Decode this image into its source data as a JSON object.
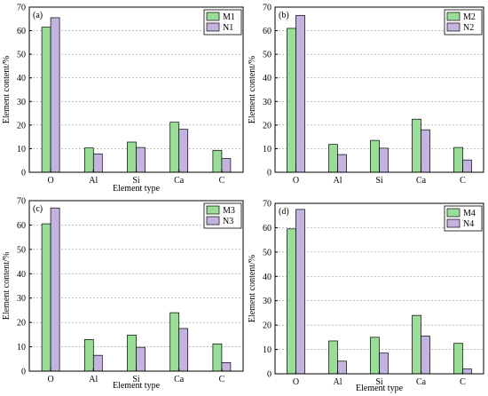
{
  "colors": {
    "series_m": "#99dd99",
    "series_n": "#c4b3e0",
    "grid": "#9a9a9a",
    "axis": "#000000"
  },
  "chart_data": [
    {
      "type": "bar",
      "panel_label": "(a)",
      "categories": [
        "O",
        "Al",
        "Si",
        "Ca",
        "C"
      ],
      "series": [
        {
          "name": "M1",
          "values": [
            61.5,
            10.3,
            12.8,
            21.2,
            9.3
          ]
        },
        {
          "name": "N1",
          "values": [
            65.5,
            7.8,
            10.5,
            18.2,
            5.8
          ]
        }
      ],
      "xlabel": "Element type",
      "ylabel": "Element content/%",
      "ylim": [
        0,
        70
      ],
      "yticks": [
        0,
        10,
        20,
        30,
        40,
        50,
        60,
        70
      ],
      "grid": true,
      "legend_position": "top-right"
    },
    {
      "type": "bar",
      "panel_label": "(b)",
      "categories": [
        "O",
        "Al",
        "Si",
        "Ca",
        "C"
      ],
      "series": [
        {
          "name": "M2",
          "values": [
            61.0,
            11.8,
            13.5,
            22.5,
            10.5
          ]
        },
        {
          "name": "N2",
          "values": [
            66.5,
            7.5,
            10.2,
            18.0,
            5.2
          ]
        }
      ],
      "xlabel": "",
      "ylabel": "Element content/%",
      "ylim": [
        0,
        70
      ],
      "yticks": [
        0,
        10,
        20,
        30,
        40,
        50,
        60,
        70
      ],
      "grid": true,
      "legend_position": "top-right"
    },
    {
      "type": "bar",
      "panel_label": "(c)",
      "categories": [
        "O",
        "Al",
        "Si",
        "Ca",
        "C"
      ],
      "series": [
        {
          "name": "M3",
          "values": [
            60.5,
            13.0,
            14.8,
            24.0,
            11.2
          ]
        },
        {
          "name": "N3",
          "values": [
            67.0,
            6.5,
            9.8,
            17.5,
            3.5
          ]
        }
      ],
      "xlabel": "Element type",
      "ylabel": "Element content/%",
      "ylim": [
        0,
        70
      ],
      "yticks": [
        0,
        10,
        20,
        30,
        40,
        50,
        60,
        70
      ],
      "grid": true,
      "legend_position": "top-right"
    },
    {
      "type": "bar",
      "panel_label": "(d)",
      "categories": [
        "O",
        "Al",
        "Si",
        "Ca",
        "C"
      ],
      "series": [
        {
          "name": "M4",
          "values": [
            59.5,
            13.5,
            15.0,
            24.0,
            12.5
          ]
        },
        {
          "name": "N4",
          "values": [
            67.5,
            5.2,
            8.5,
            15.5,
            2.0
          ]
        }
      ],
      "xlabel": "Element type",
      "ylabel": "Element content/%",
      "ylim": [
        0,
        70
      ],
      "yticks": [
        0,
        10,
        20,
        30,
        40,
        50,
        60,
        70
      ],
      "grid": true,
      "legend_position": "top-right"
    }
  ]
}
